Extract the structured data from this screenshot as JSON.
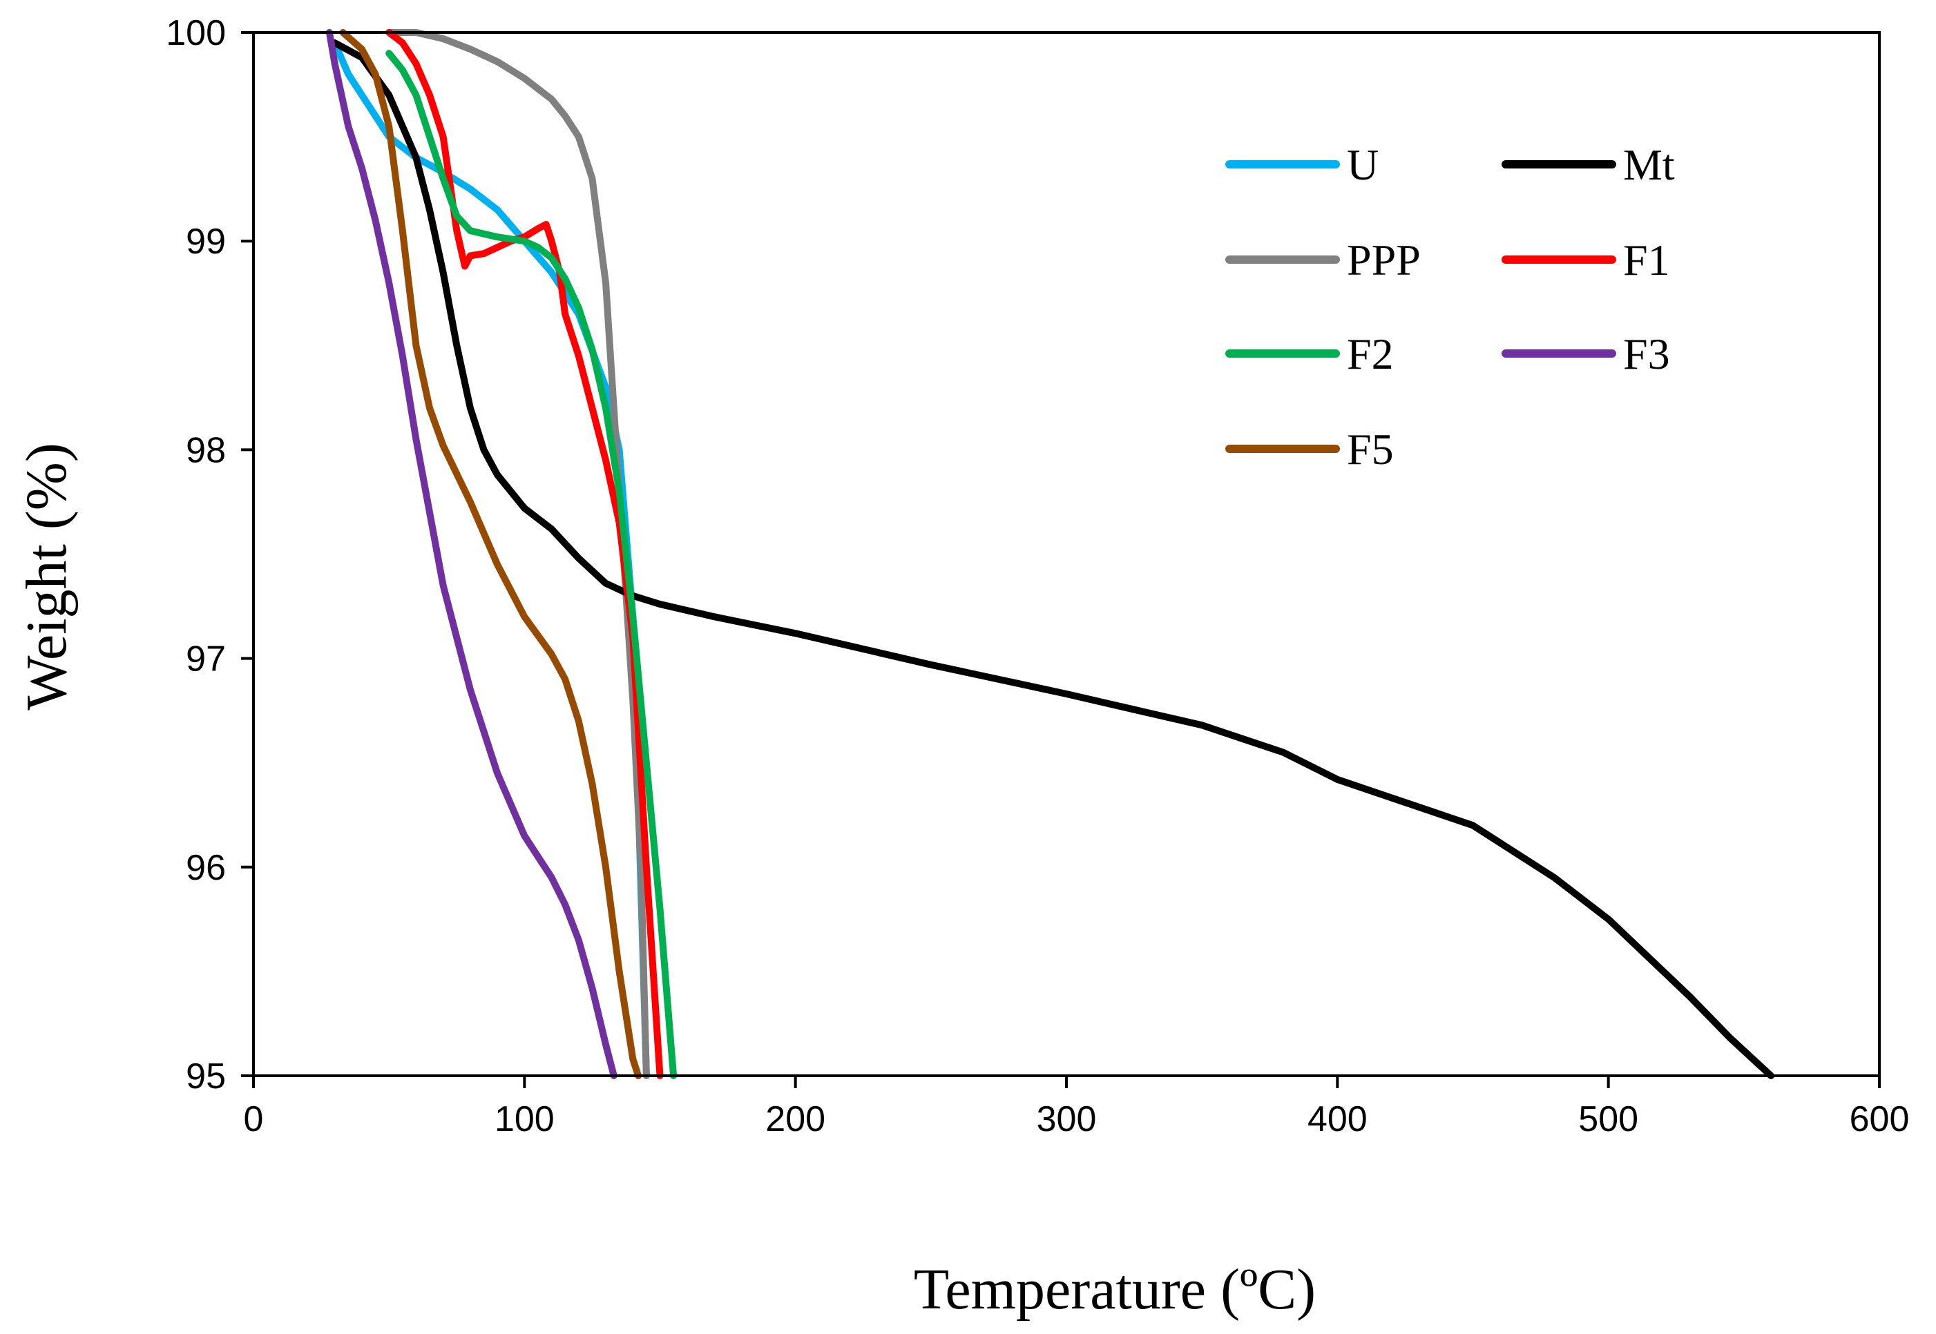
{
  "chart_data": {
    "type": "line",
    "title": "",
    "xlabel": "Temperature (ºC)",
    "ylabel": "Weight (%)",
    "xlim": [
      0,
      600
    ],
    "ylim": [
      95,
      100
    ],
    "xticks": [
      0,
      100,
      200,
      300,
      400,
      500,
      600
    ],
    "yticks": [
      95,
      96,
      97,
      98,
      99,
      100
    ],
    "xtick_labels": [
      "0",
      "100",
      "200",
      "300",
      "400",
      "500",
      "600"
    ],
    "ytick_labels": [
      "95",
      "96",
      "97",
      "98",
      "99",
      "100"
    ],
    "grid": false,
    "legend_position": "top-right",
    "series": [
      {
        "name": "U",
        "color": "#00b0f0",
        "x": [
          30,
          35,
          40,
          45,
          50,
          55,
          60,
          70,
          80,
          90,
          100,
          110,
          120,
          130,
          135,
          140,
          145
        ],
        "y": [
          99.95,
          99.8,
          99.7,
          99.6,
          99.5,
          99.45,
          99.4,
          99.33,
          99.25,
          99.15,
          99.0,
          98.85,
          98.65,
          98.3,
          98.0,
          97.2,
          95.0
        ]
      },
      {
        "name": "PPP",
        "color": "#808080",
        "x": [
          50,
          60,
          70,
          80,
          90,
          100,
          110,
          115,
          120,
          125,
          130,
          135,
          140,
          143,
          145
        ],
        "y": [
          100.0,
          100.0,
          99.97,
          99.92,
          99.86,
          99.78,
          99.68,
          99.6,
          99.5,
          99.3,
          98.8,
          97.8,
          96.8,
          96.0,
          95.0
        ]
      },
      {
        "name": "Mt",
        "color": "#000000",
        "x": [
          30,
          40,
          50,
          60,
          65,
          70,
          75,
          80,
          85,
          90,
          100,
          110,
          120,
          130,
          140,
          150,
          170,
          200,
          250,
          300,
          350,
          380,
          400,
          450,
          480,
          500,
          530,
          545,
          560
        ],
        "y": [
          99.95,
          99.88,
          99.7,
          99.4,
          99.15,
          98.85,
          98.5,
          98.2,
          98.0,
          97.88,
          97.72,
          97.62,
          97.48,
          97.36,
          97.3,
          97.26,
          97.2,
          97.12,
          96.97,
          96.83,
          96.68,
          96.55,
          96.42,
          96.2,
          95.95,
          95.75,
          95.38,
          95.18,
          95.0
        ]
      },
      {
        "name": "F1",
        "color": "#ff0000",
        "x": [
          50,
          55,
          60,
          65,
          70,
          75,
          78,
          80,
          85,
          90,
          95,
          100,
          105,
          108,
          110,
          113,
          115,
          120,
          125,
          130,
          135,
          140,
          145,
          150
        ],
        "y": [
          100.0,
          99.95,
          99.85,
          99.7,
          99.5,
          99.05,
          98.88,
          98.93,
          98.94,
          98.97,
          99.0,
          99.02,
          99.06,
          99.08,
          99.0,
          98.85,
          98.65,
          98.45,
          98.2,
          97.95,
          97.65,
          97.1,
          96.0,
          95.0
        ]
      },
      {
        "name": "F2",
        "color": "#00b050",
        "x": [
          50,
          55,
          60,
          65,
          70,
          75,
          80,
          90,
          100,
          105,
          110,
          115,
          120,
          125,
          130,
          135,
          140,
          145,
          150,
          155
        ],
        "y": [
          99.9,
          99.82,
          99.7,
          99.5,
          99.3,
          99.12,
          99.05,
          99.02,
          99.0,
          98.97,
          98.92,
          98.82,
          98.68,
          98.48,
          98.2,
          97.8,
          97.2,
          96.5,
          95.8,
          95.0
        ]
      },
      {
        "name": "F3",
        "color": "#7030a0",
        "x": [
          28,
          30,
          35,
          40,
          45,
          50,
          55,
          60,
          70,
          80,
          90,
          100,
          110,
          115,
          120,
          125,
          130,
          133
        ],
        "y": [
          100.0,
          99.85,
          99.55,
          99.35,
          99.1,
          98.8,
          98.45,
          98.05,
          97.35,
          96.85,
          96.45,
          96.15,
          95.95,
          95.82,
          95.65,
          95.42,
          95.15,
          95.0
        ]
      },
      {
        "name": "F5",
        "color": "#964b00",
        "x": [
          33,
          40,
          45,
          50,
          55,
          60,
          65,
          70,
          80,
          90,
          100,
          110,
          115,
          120,
          125,
          130,
          135,
          140,
          142
        ],
        "y": [
          100.0,
          99.92,
          99.8,
          99.55,
          99.05,
          98.5,
          98.2,
          98.02,
          97.75,
          97.45,
          97.2,
          97.02,
          96.9,
          96.7,
          96.4,
          96.0,
          95.5,
          95.08,
          95.0
        ]
      }
    ]
  }
}
